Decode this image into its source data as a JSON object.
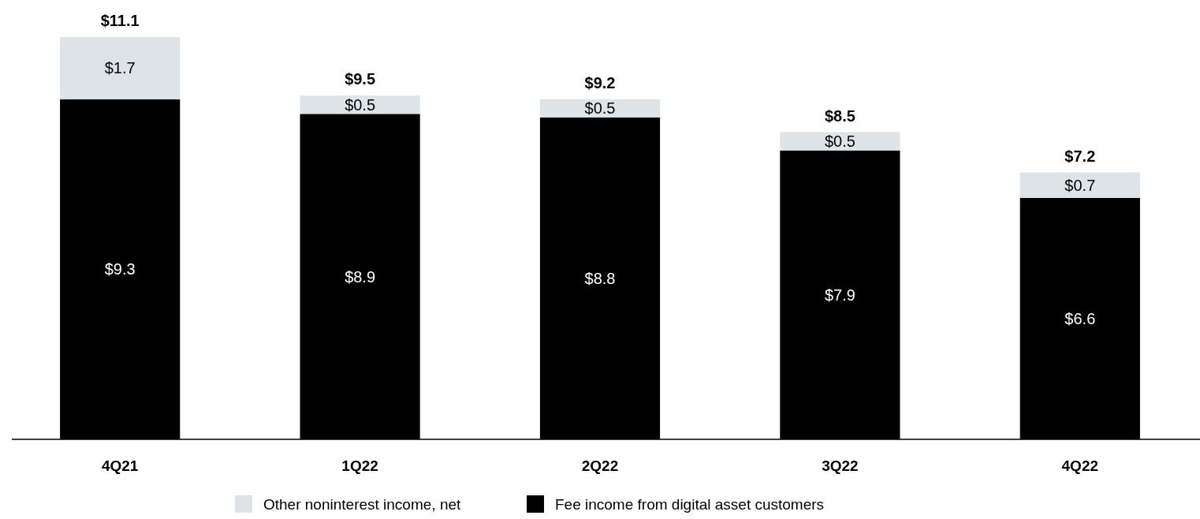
{
  "chart_data": {
    "type": "bar",
    "stacked": true,
    "categories": [
      "4Q21",
      "1Q22",
      "2Q22",
      "3Q22",
      "4Q22"
    ],
    "series": [
      {
        "name": "Fee income from digital asset customers",
        "color": "#000000",
        "values": [
          9.3,
          8.9,
          8.8,
          7.9,
          6.6
        ],
        "value_labels": [
          "$9.3",
          "$8.9",
          "$8.8",
          "$7.9",
          "$6.6"
        ]
      },
      {
        "name": "Other noninterest income, net",
        "color": "#dde3e6",
        "values": [
          1.7,
          0.5,
          0.5,
          0.5,
          0.7
        ],
        "value_labels": [
          "$1.7",
          "$0.5",
          "$0.5",
          "$0.5",
          "$0.7"
        ]
      }
    ],
    "totals": [
      "$11.1",
      "$9.5",
      "$9.2",
      "$8.5",
      "$7.2"
    ],
    "legend": "bottom"
  }
}
